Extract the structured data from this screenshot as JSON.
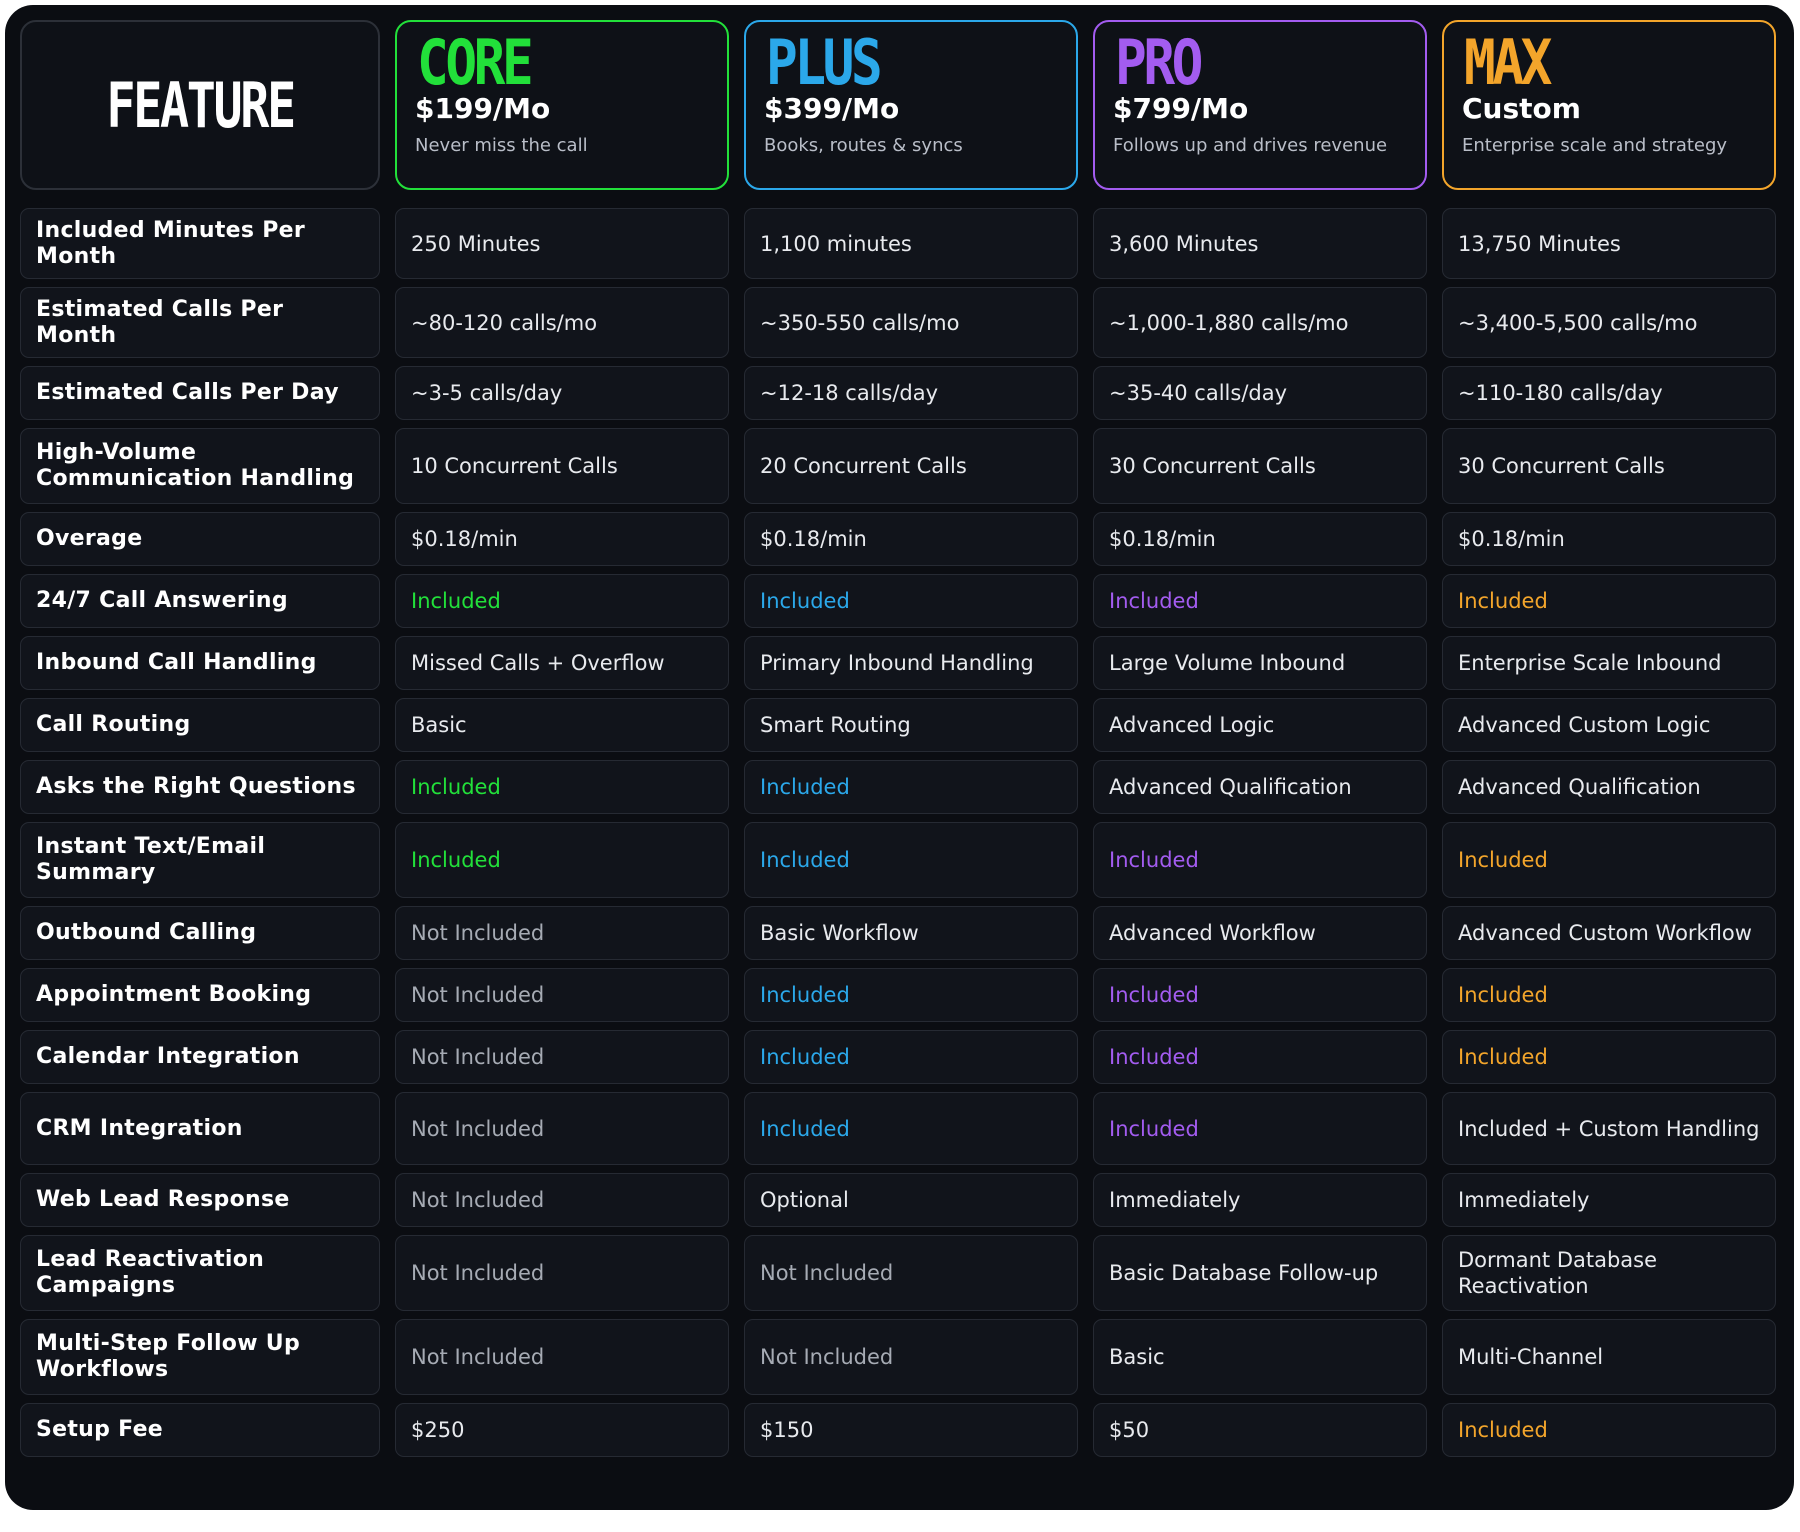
{
  "header": {
    "feature_title": "FEATURE",
    "plans": [
      {
        "name": "CORE",
        "price": "$199/Mo",
        "tagline": "Never miss the call",
        "color": "#22e03a"
      },
      {
        "name": "PLUS",
        "price": "$399/Mo",
        "tagline": "Books, routes & syncs",
        "color": "#2ba8ea"
      },
      {
        "name": "PRO",
        "price": "$799/Mo",
        "tagline": "Follows up and drives revenue",
        "color": "#a35cf0"
      },
      {
        "name": "MAX",
        "price": "Custom",
        "tagline": "Enterprise scale and strategy",
        "color": "#f3a52b"
      }
    ]
  },
  "rows": [
    {
      "label": "Included Minutes Per Month",
      "values": [
        "250 Minutes",
        "1,100 minutes",
        "3,600 Minutes",
        "13,750 Minutes"
      ]
    },
    {
      "label": "Estimated Calls Per Month",
      "values": [
        "~80-120 calls/mo",
        "~350-550 calls/mo",
        "~1,000-1,880 calls/mo",
        "~3,400-5,500 calls/mo"
      ]
    },
    {
      "label": "Estimated Calls Per Day",
      "values": [
        "~3-5 calls/day",
        "~12-18 calls/day",
        "~35-40 calls/day",
        "~110-180 calls/day"
      ]
    },
    {
      "label": "High-Volume Communication Handling",
      "values": [
        "10 Concurrent Calls",
        "20 Concurrent Calls",
        "30 Concurrent Calls",
        "30 Concurrent Calls"
      ]
    },
    {
      "label": "Overage",
      "values": [
        "$0.18/min",
        "$0.18/min",
        "$0.18/min",
        "$0.18/min"
      ]
    },
    {
      "label": "24/7 Call Answering",
      "values": [
        "Included",
        "Included",
        "Included",
        "Included"
      ]
    },
    {
      "label": "Inbound Call Handling",
      "values": [
        "Missed Calls + Overflow",
        "Primary Inbound Handling",
        "Large Volume Inbound",
        "Enterprise Scale Inbound"
      ]
    },
    {
      "label": "Call Routing",
      "values": [
        "Basic",
        "Smart Routing",
        "Advanced Logic",
        "Advanced Custom Logic"
      ]
    },
    {
      "label": "Asks the Right Questions",
      "values": [
        "Included",
        "Included",
        "Advanced Qualification",
        "Advanced Qualification"
      ]
    },
    {
      "label": "Instant Text/Email Summary",
      "values": [
        "Included",
        "Included",
        "Included",
        "Included"
      ]
    },
    {
      "label": "Outbound Calling",
      "values": [
        "Not Included",
        "Basic Workflow",
        "Advanced Workflow",
        "Advanced Custom Workflow"
      ]
    },
    {
      "label": "Appointment Booking",
      "values": [
        "Not Included",
        "Included",
        "Included",
        "Included"
      ]
    },
    {
      "label": "Calendar Integration",
      "values": [
        "Not Included",
        "Included",
        "Included",
        "Included"
      ]
    },
    {
      "label": "CRM Integration",
      "values": [
        "Not Included",
        "Included",
        "Included",
        "Included + Custom Handling"
      ]
    },
    {
      "label": "Web Lead Response",
      "values": [
        "Not Included",
        "Optional",
        "Immediately",
        "Immediately"
      ]
    },
    {
      "label": "Lead Reactivation Campaigns",
      "values": [
        "Not Included",
        "Not Included",
        "Basic Database Follow-up",
        "Dormant Database Reactivation"
      ]
    },
    {
      "label": "Multi-Step Follow Up Workflows",
      "values": [
        "Not Included",
        "Not Included",
        "Basic",
        "Multi-Channel"
      ]
    },
    {
      "label": "Setup Fee",
      "values": [
        "$250",
        "$150",
        "$50",
        "Included"
      ]
    }
  ]
}
